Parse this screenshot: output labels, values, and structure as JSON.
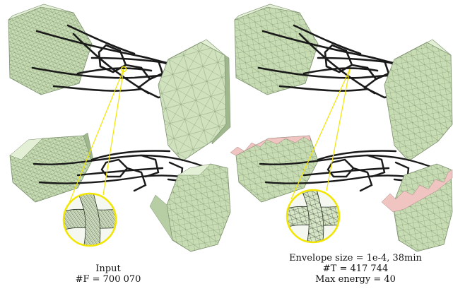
{
  "figure": {
    "panels": [
      {
        "caption_lines": [
          "Input",
          "#F = 700 070"
        ]
      },
      {
        "caption_lines": [
          "Envelope size = 1e-4, 38min",
          "#T = 417 744",
          "Max energy = 40"
        ]
      }
    ],
    "colors": {
      "surface": "#c8dcb4",
      "surface_light": "#e4f0d6",
      "surface_dark": "#8fa87e",
      "mesh_line": "#5a6b52",
      "strut": "#1a1a1a",
      "highlight": "#f2e600",
      "cut_face": "#f0c4c0"
    }
  }
}
